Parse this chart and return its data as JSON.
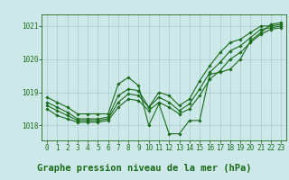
{
  "title": "Graphe pression niveau de la mer (hPa)",
  "bg_color": "#cce8e8",
  "line_color": "#1a6b1a",
  "grid_color": "#a8cccc",
  "ylim": [
    1017.55,
    1021.35
  ],
  "xlim": [
    -0.5,
    23.5
  ],
  "yticks": [
    1018,
    1019,
    1020,
    1021
  ],
  "xticks": [
    0,
    1,
    2,
    3,
    4,
    5,
    6,
    7,
    8,
    9,
    10,
    11,
    12,
    13,
    14,
    15,
    16,
    17,
    18,
    19,
    20,
    21,
    22,
    23
  ],
  "series": [
    [
      1018.85,
      1018.7,
      1018.55,
      1018.35,
      1018.35,
      1018.35,
      1018.35,
      1019.25,
      1019.45,
      1019.2,
      1018.0,
      1018.65,
      1017.75,
      1017.75,
      1018.15,
      1018.15,
      1019.55,
      1019.6,
      1019.7,
      1020.0,
      1020.55,
      1020.8,
      1021.05,
      1021.1
    ],
    [
      1018.7,
      1018.55,
      1018.4,
      1018.2,
      1018.2,
      1018.2,
      1018.25,
      1018.9,
      1019.1,
      1019.05,
      1018.55,
      1019.0,
      1018.9,
      1018.6,
      1018.8,
      1019.35,
      1019.8,
      1020.2,
      1020.5,
      1020.6,
      1020.8,
      1021.0,
      1021.0,
      1021.05
    ],
    [
      1018.6,
      1018.45,
      1018.3,
      1018.15,
      1018.15,
      1018.15,
      1018.2,
      1018.7,
      1018.95,
      1018.9,
      1018.55,
      1018.85,
      1018.7,
      1018.45,
      1018.65,
      1019.1,
      1019.6,
      1019.9,
      1020.25,
      1020.4,
      1020.65,
      1020.9,
      1020.95,
      1021.0
    ],
    [
      1018.5,
      1018.3,
      1018.2,
      1018.1,
      1018.1,
      1018.1,
      1018.15,
      1018.55,
      1018.8,
      1018.75,
      1018.45,
      1018.7,
      1018.55,
      1018.35,
      1018.5,
      1018.9,
      1019.4,
      1019.65,
      1020.0,
      1020.2,
      1020.5,
      1020.75,
      1020.9,
      1020.95
    ]
  ],
  "marker": "D",
  "marker_size": 1.8,
  "line_width": 0.8,
  "title_fontsize": 7.5,
  "tick_fontsize": 5.5
}
